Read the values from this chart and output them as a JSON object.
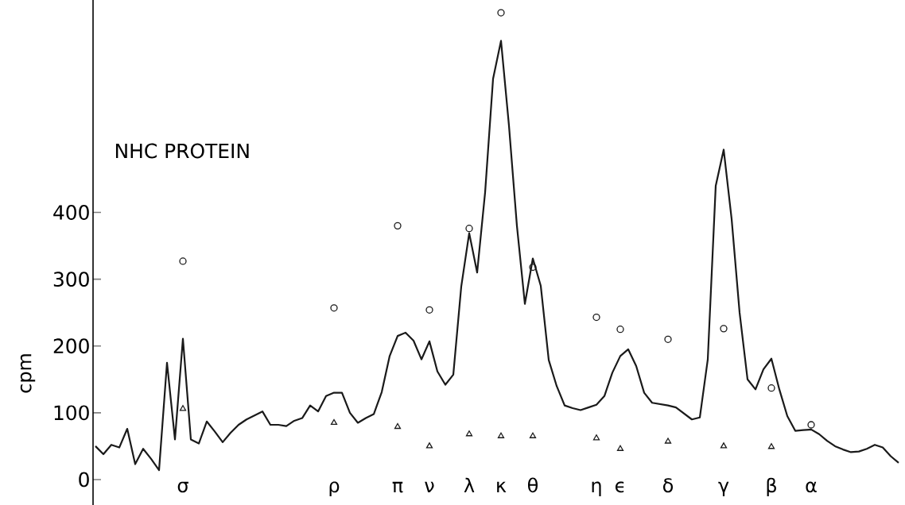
{
  "chart_data": {
    "type": "line",
    "title": "NHC PROTEIN",
    "ylabel": "cpm",
    "categories": [
      null,
      null,
      null,
      null,
      null,
      null,
      null,
      null,
      null,
      null,
      null,
      "σ",
      null,
      null,
      null,
      null,
      null,
      null,
      null,
      null,
      null,
      null,
      null,
      null,
      null,
      null,
      null,
      null,
      null,
      null,
      "ρ",
      null,
      null,
      null,
      null,
      null,
      null,
      null,
      "π",
      null,
      null,
      null,
      "ν",
      null,
      null,
      null,
      null,
      "λ",
      null,
      null,
      null,
      "κ",
      null,
      null,
      null,
      "θ",
      null,
      null,
      null,
      null,
      null,
      null,
      null,
      "η",
      null,
      null,
      "ϵ",
      null,
      null,
      null,
      null,
      null,
      "δ",
      null,
      null,
      null,
      null,
      null,
      null,
      "γ",
      null,
      null,
      null,
      null,
      null,
      "β",
      null,
      null,
      null,
      null,
      "α",
      null,
      null,
      null,
      null,
      null,
      null,
      null,
      null,
      null,
      null,
      null
    ],
    "ylim": [
      -38,
      718
    ],
    "yticks": [
      0,
      100,
      200,
      300,
      400
    ],
    "series": [
      {
        "color": "#1a1a1a",
        "marker": "none",
        "values": [
          50,
          38,
          52,
          48,
          76,
          23,
          46,
          31,
          14,
          175,
          60,
          211,
          60,
          54,
          87,
          72,
          56,
          70,
          82,
          90,
          96,
          102,
          82,
          82,
          80,
          88,
          92,
          111,
          102,
          125,
          130,
          130,
          100,
          85,
          92,
          98,
          131,
          185,
          215,
          220,
          208,
          180,
          207,
          162,
          142,
          157,
          289,
          369,
          310,
          430,
          600,
          657,
          530,
          380,
          263,
          331,
          290,
          179,
          140,
          111,
          107,
          104,
          108,
          112,
          125,
          160,
          185,
          195,
          170,
          130,
          115,
          113,
          111,
          108,
          99,
          90,
          93,
          180,
          440,
          494,
          390,
          250,
          150,
          135,
          165,
          181,
          135,
          95,
          73,
          74,
          75,
          68,
          58,
          50,
          45,
          41,
          42,
          46,
          52,
          48,
          35,
          25
        ]
      },
      {
        "type": "scatter",
        "color": "#1a1a1a",
        "marker": "circle",
        "x": [
          "σ",
          "ρ",
          "π",
          "ν",
          "λ",
          "κ",
          "θ",
          "η",
          "ϵ",
          "δ",
          "γ",
          "β",
          "α"
        ],
        "values": [
          327,
          257,
          380,
          254,
          376,
          699,
          318,
          243,
          225,
          210,
          226,
          137,
          82
        ]
      },
      {
        "type": "scatter",
        "color": "#1a1a1a",
        "marker": "triangle",
        "x": [
          "σ",
          "ρ",
          "π",
          "ν",
          "λ",
          "κ",
          "θ",
          "η",
          "ϵ",
          "δ",
          "γ",
          "β"
        ],
        "values": [
          106,
          85,
          79,
          50,
          68,
          65,
          65,
          62,
          46,
          57,
          50,
          49
        ]
      }
    ]
  }
}
